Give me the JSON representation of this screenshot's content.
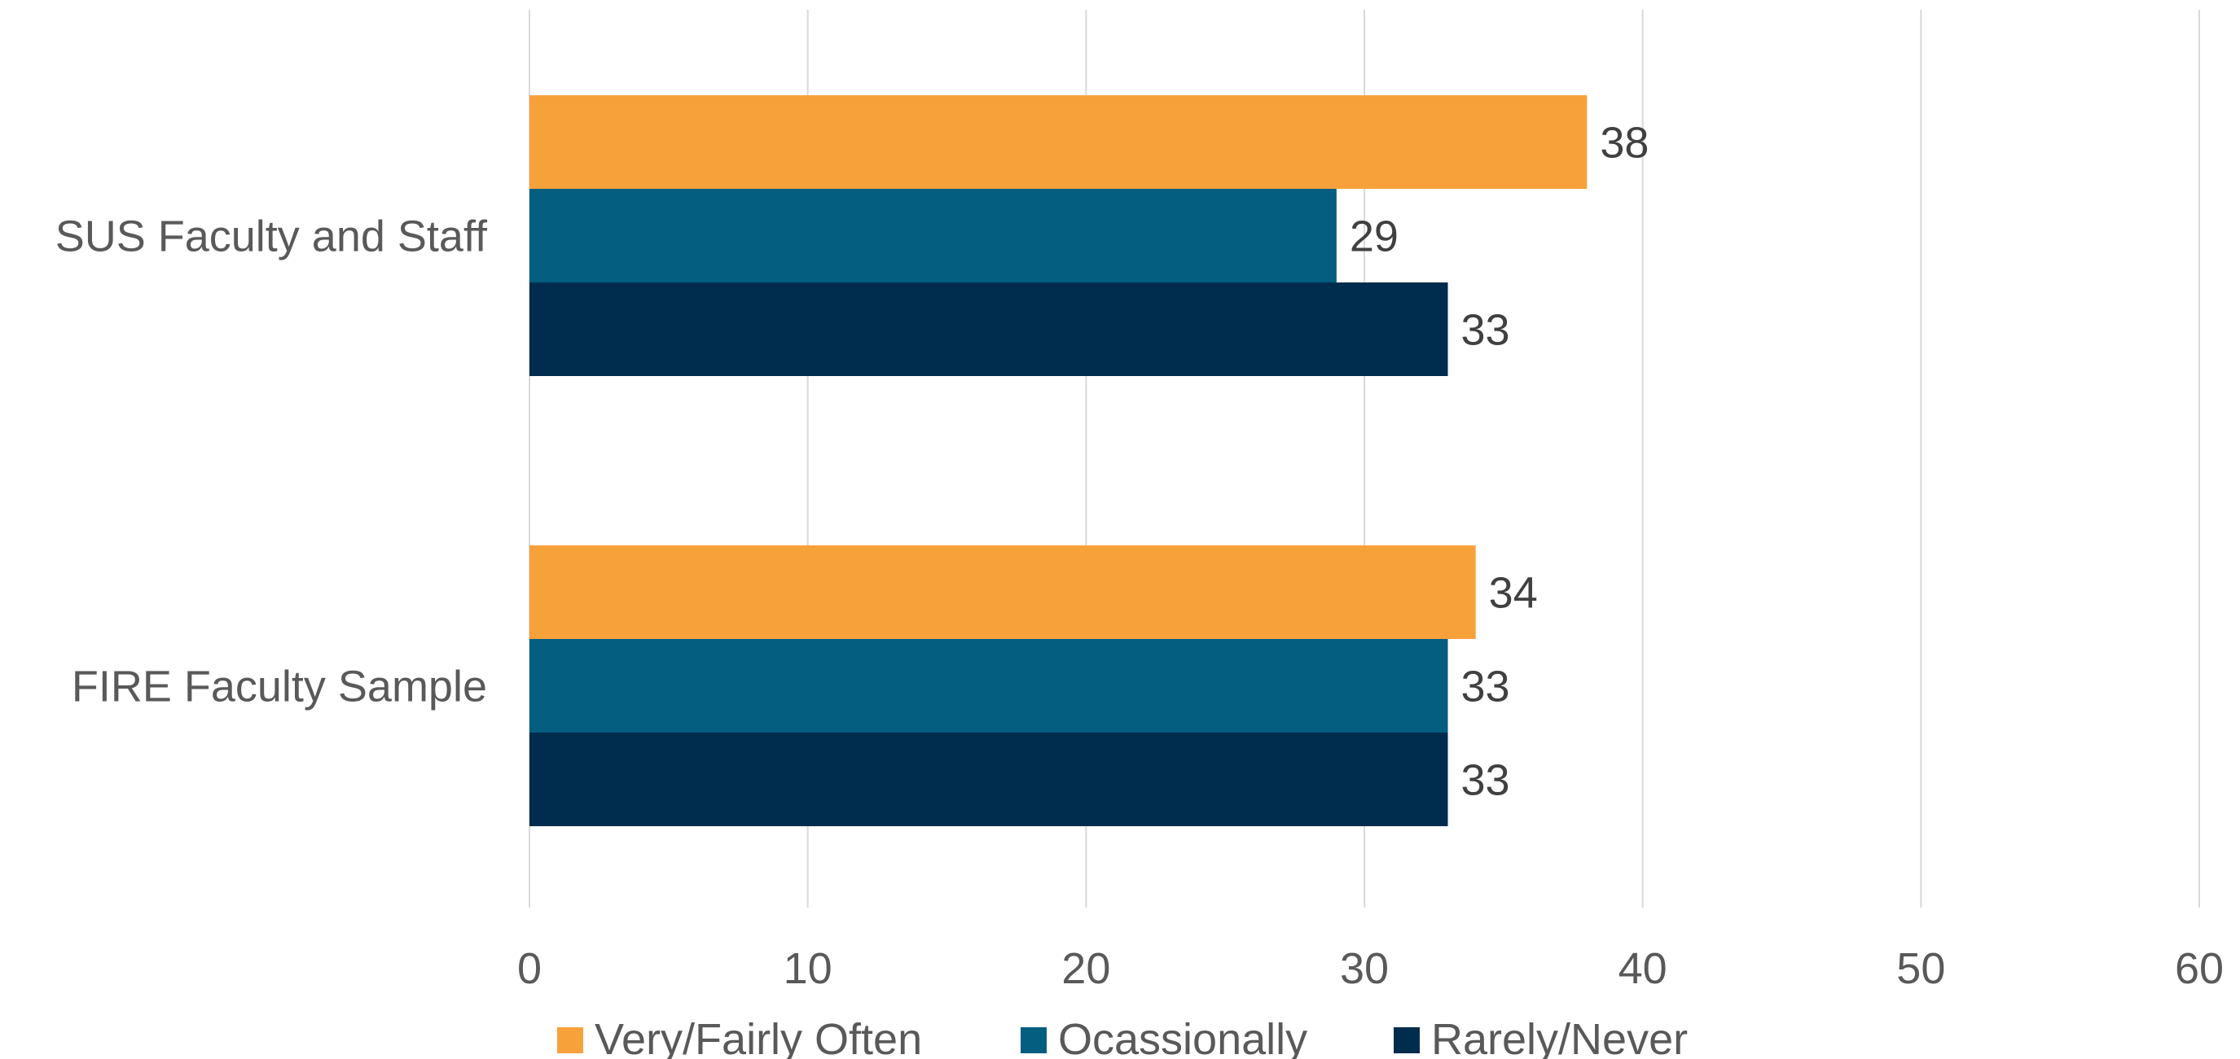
{
  "chart_data": {
    "type": "bar",
    "orientation": "horizontal",
    "title": "",
    "xlabel": "",
    "ylabel": "",
    "categories": [
      "SUS Faculty and Staff",
      "FIRE Faculty Sample"
    ],
    "series": [
      {
        "name": "Very/Fairly Often",
        "color": "#F7A13B",
        "values": [
          38,
          34
        ]
      },
      {
        "name": "Ocassionally",
        "color": "#035E80",
        "values": [
          29,
          33
        ]
      },
      {
        "name": "Rarely/Never",
        "color": "#002C4D",
        "values": [
          33,
          33
        ]
      }
    ],
    "xlim": [
      0,
      60
    ],
    "xticks": [
      0,
      10,
      20,
      30,
      40,
      50,
      60
    ],
    "grid": true,
    "legend_position": "bottom",
    "data_labels": true,
    "colors": {
      "gridline": "#D9D9D9",
      "text": "#404040",
      "category_text": "#595959"
    }
  }
}
